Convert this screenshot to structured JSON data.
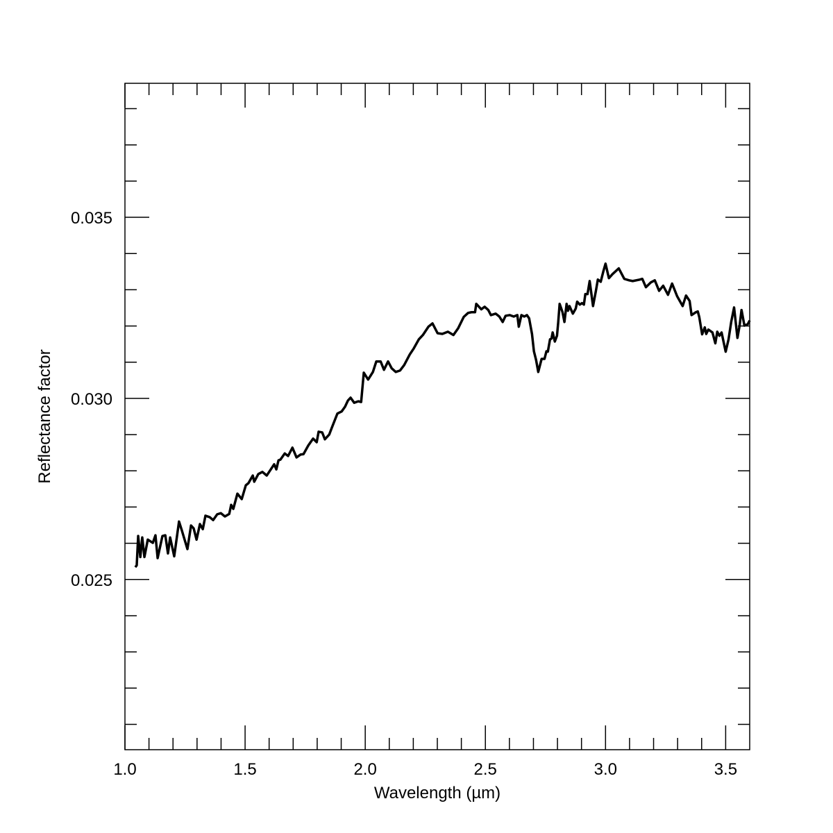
{
  "chart_data": {
    "type": "line",
    "xlabel": "Wavelength (µm)",
    "ylabel": "Reflectance factor",
    "xlim": [
      1.0,
      3.6
    ],
    "ylim": [
      0.0203,
      0.0387
    ],
    "xticks": [
      {
        "value": 1.0,
        "label": "1.0"
      },
      1.5,
      {
        "value": 2.0,
        "label": "2.0"
      },
      2.5,
      {
        "value": 3.0,
        "label": "3.0"
      },
      3.5
    ],
    "xminorticks": [
      1.1,
      1.2,
      1.3,
      1.4,
      1.6,
      1.7,
      1.8,
      1.9,
      2.1,
      2.2,
      2.3,
      2.4,
      2.6,
      2.7,
      2.8,
      2.9,
      3.1,
      3.2,
      3.3,
      3.4
    ],
    "yticks": [
      0.025,
      {
        "value": 0.03,
        "label": "0.030"
      },
      0.035
    ],
    "yminorticks": [
      0.021,
      0.022,
      0.023,
      0.024,
      0.026,
      0.027,
      0.028,
      0.029,
      0.031,
      0.032,
      0.033,
      0.034,
      0.036,
      0.037,
      0.038
    ],
    "series": [
      {
        "color": "#000000",
        "x": [
          1.043,
          1.049,
          1.055,
          1.064,
          1.072,
          1.081,
          1.095,
          1.116,
          1.127,
          1.136,
          1.156,
          1.168,
          1.179,
          1.188,
          1.205,
          1.225,
          1.237,
          1.26,
          1.275,
          1.286,
          1.298,
          1.312,
          1.324,
          1.335,
          1.353,
          1.367,
          1.384,
          1.399,
          1.416,
          1.434,
          1.442,
          1.451,
          1.468,
          1.486,
          1.503,
          1.514,
          1.532,
          1.538,
          1.555,
          1.572,
          1.59,
          1.607,
          1.621,
          1.63,
          1.639,
          1.647,
          1.665,
          1.679,
          1.697,
          1.714,
          1.731,
          1.743,
          1.763,
          1.783,
          1.798,
          1.806,
          1.821,
          1.832,
          1.85,
          1.861,
          1.884,
          1.902,
          1.916,
          1.928,
          1.939,
          1.954,
          1.971,
          1.983,
          1.994,
          2.012,
          2.032,
          2.046,
          2.064,
          2.078,
          2.095,
          2.11,
          2.127,
          2.145,
          2.162,
          2.185,
          2.202,
          2.223,
          2.24,
          2.263,
          2.28,
          2.301,
          2.321,
          2.344,
          2.367,
          2.387,
          2.41,
          2.428,
          2.442,
          2.457,
          2.462,
          2.483,
          2.497,
          2.512,
          2.523,
          2.543,
          2.558,
          2.572,
          2.584,
          2.601,
          2.618,
          2.633,
          2.639,
          2.65,
          2.662,
          2.673,
          2.682,
          2.694,
          2.702,
          2.711,
          2.72,
          2.734,
          2.746,
          2.754,
          2.76,
          2.769,
          2.775,
          2.78,
          2.789,
          2.798,
          2.803,
          2.809,
          2.821,
          2.829,
          2.838,
          2.844,
          2.85,
          2.864,
          2.876,
          2.882,
          2.893,
          2.902,
          2.91,
          2.916,
          2.925,
          2.934,
          2.948,
          2.96,
          2.968,
          2.98,
          2.991,
          3.0,
          3.014,
          3.029,
          3.055,
          3.078,
          3.098,
          3.113,
          3.142,
          3.153,
          3.168,
          3.188,
          3.205,
          3.223,
          3.24,
          3.26,
          3.277,
          3.298,
          3.321,
          3.335,
          3.35,
          3.358,
          3.376,
          3.384,
          3.39,
          3.402,
          3.413,
          3.419,
          3.428,
          3.445,
          3.457,
          3.465,
          3.474,
          3.483,
          3.5,
          3.512,
          3.523,
          3.535,
          3.549,
          3.558,
          3.566,
          3.578,
          3.592,
          3.6
        ],
        "values": [
          0.02534,
          0.02539,
          0.0262,
          0.02562,
          0.02616,
          0.02562,
          0.0261,
          0.02601,
          0.02622,
          0.02559,
          0.0262,
          0.02622,
          0.02572,
          0.02616,
          0.02564,
          0.0266,
          0.02635,
          0.02584,
          0.02649,
          0.02641,
          0.0261,
          0.02653,
          0.02639,
          0.02676,
          0.02672,
          0.02664,
          0.0268,
          0.02683,
          0.02674,
          0.02681,
          0.02706,
          0.02695,
          0.02737,
          0.02722,
          0.0276,
          0.02766,
          0.02787,
          0.0277,
          0.02791,
          0.02797,
          0.02787,
          0.02804,
          0.02818,
          0.02804,
          0.02829,
          0.02831,
          0.02848,
          0.02841,
          0.02864,
          0.02837,
          0.02845,
          0.02846,
          0.0287,
          0.02889,
          0.02879,
          0.02908,
          0.02906,
          0.02887,
          0.029,
          0.02919,
          0.02958,
          0.02964,
          0.02977,
          0.02994,
          0.03002,
          0.02988,
          0.02992,
          0.0299,
          0.03071,
          0.03052,
          0.03073,
          0.03102,
          0.03102,
          0.03079,
          0.03102,
          0.03083,
          0.03073,
          0.03077,
          0.03092,
          0.03121,
          0.03138,
          0.03163,
          0.03175,
          0.03198,
          0.03207,
          0.0318,
          0.03178,
          0.03184,
          0.03175,
          0.03194,
          0.03225,
          0.03236,
          0.03238,
          0.03238,
          0.03261,
          0.03246,
          0.03253,
          0.03244,
          0.0323,
          0.03234,
          0.03226,
          0.03211,
          0.03228,
          0.0323,
          0.03226,
          0.0323,
          0.03198,
          0.0323,
          0.03226,
          0.0323,
          0.03221,
          0.03178,
          0.0313,
          0.03106,
          0.03073,
          0.03109,
          0.03109,
          0.0313,
          0.03129,
          0.03163,
          0.03165,
          0.03182,
          0.03157,
          0.03173,
          0.03209,
          0.03261,
          0.03238,
          0.03211,
          0.03261,
          0.03242,
          0.03255,
          0.03234,
          0.03248,
          0.03267,
          0.03259,
          0.03263,
          0.03259,
          0.03288,
          0.03288,
          0.03324,
          0.03255,
          0.03297,
          0.03328,
          0.03322,
          0.03351,
          0.03372,
          0.03332,
          0.03343,
          0.03359,
          0.0333,
          0.03326,
          0.03324,
          0.03328,
          0.0333,
          0.03307,
          0.0332,
          0.03326,
          0.03297,
          0.03311,
          0.03286,
          0.03317,
          0.03282,
          0.03255,
          0.03284,
          0.03269,
          0.0323,
          0.03238,
          0.0324,
          0.03225,
          0.03177,
          0.03196,
          0.03178,
          0.0319,
          0.03182,
          0.03152,
          0.03184,
          0.03173,
          0.03182,
          0.03129,
          0.03163,
          0.03211,
          0.03251,
          0.03167,
          0.03201,
          0.03244,
          0.03201,
          0.03205,
          0.03215
        ]
      }
    ]
  }
}
